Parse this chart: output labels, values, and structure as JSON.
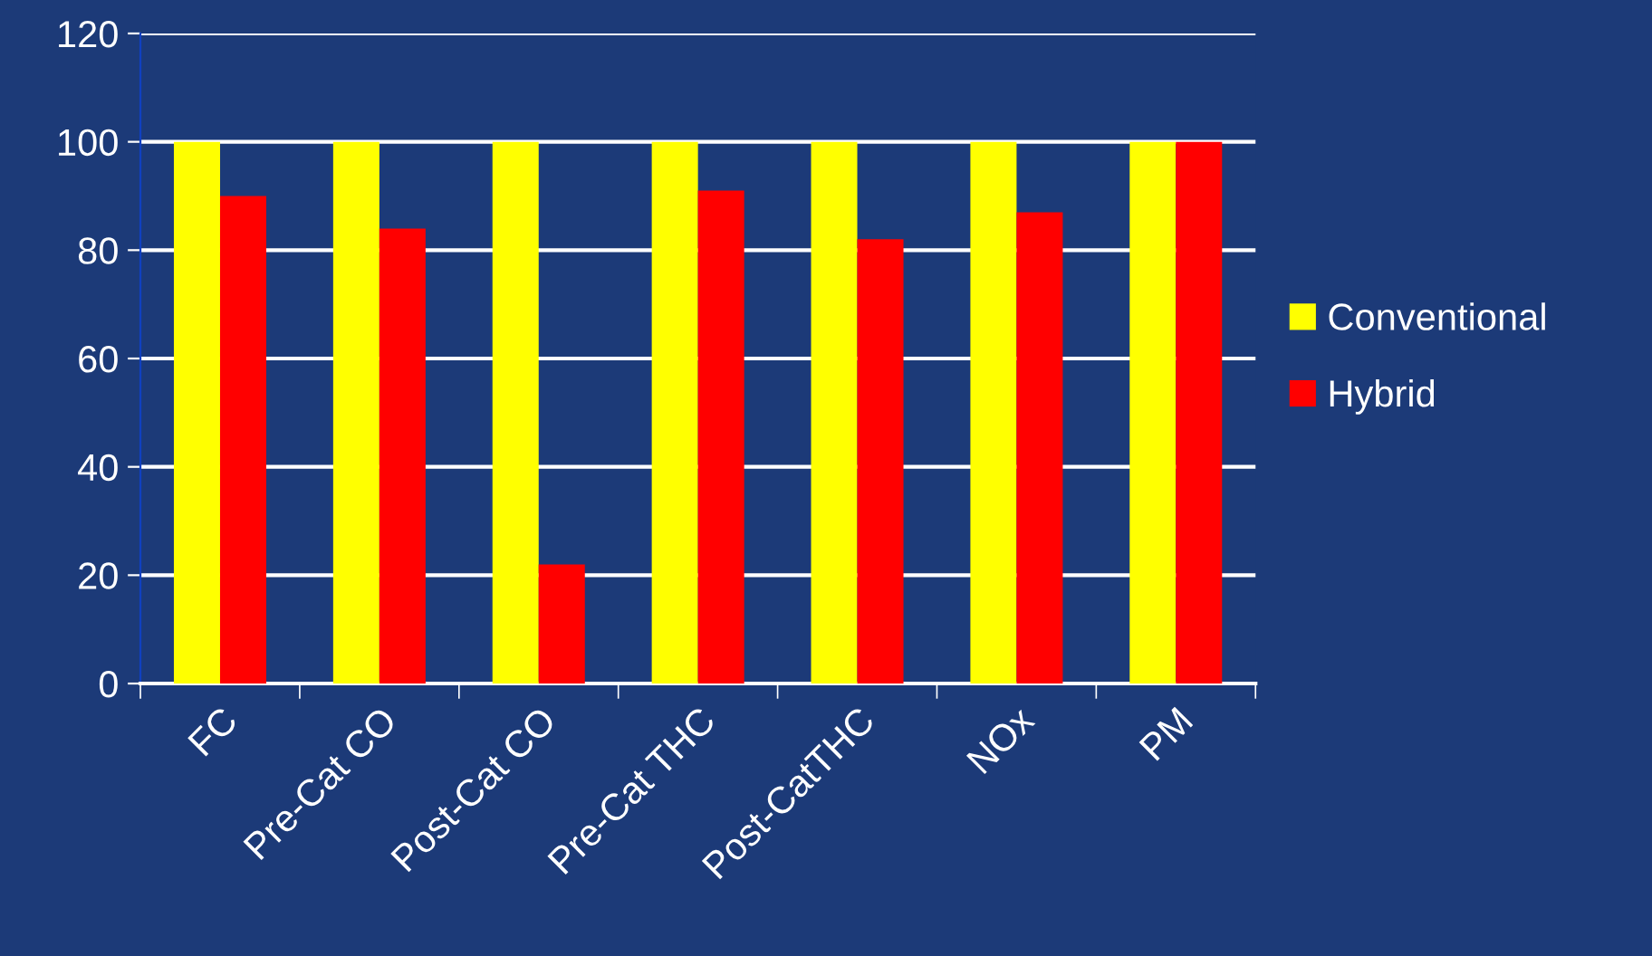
{
  "chart_data": {
    "type": "bar",
    "categories": [
      "FC",
      "Pre-Cat CO",
      "Post-Cat CO",
      "Pre-Cat THC",
      "Post-CatTHC",
      "NOx",
      "PM"
    ],
    "series": [
      {
        "name": "Conventional",
        "color": "#ffff00",
        "values": [
          100,
          100,
          100,
          100,
          100,
          100,
          100
        ]
      },
      {
        "name": "Hybrid",
        "color": "#ff0000",
        "values": [
          90,
          84,
          22,
          91,
          82,
          87,
          100
        ]
      }
    ],
    "ylim": [
      0,
      120
    ],
    "yticks": [
      0,
      20,
      40,
      60,
      80,
      100,
      120
    ],
    "grid": "y",
    "legend": "right"
  }
}
